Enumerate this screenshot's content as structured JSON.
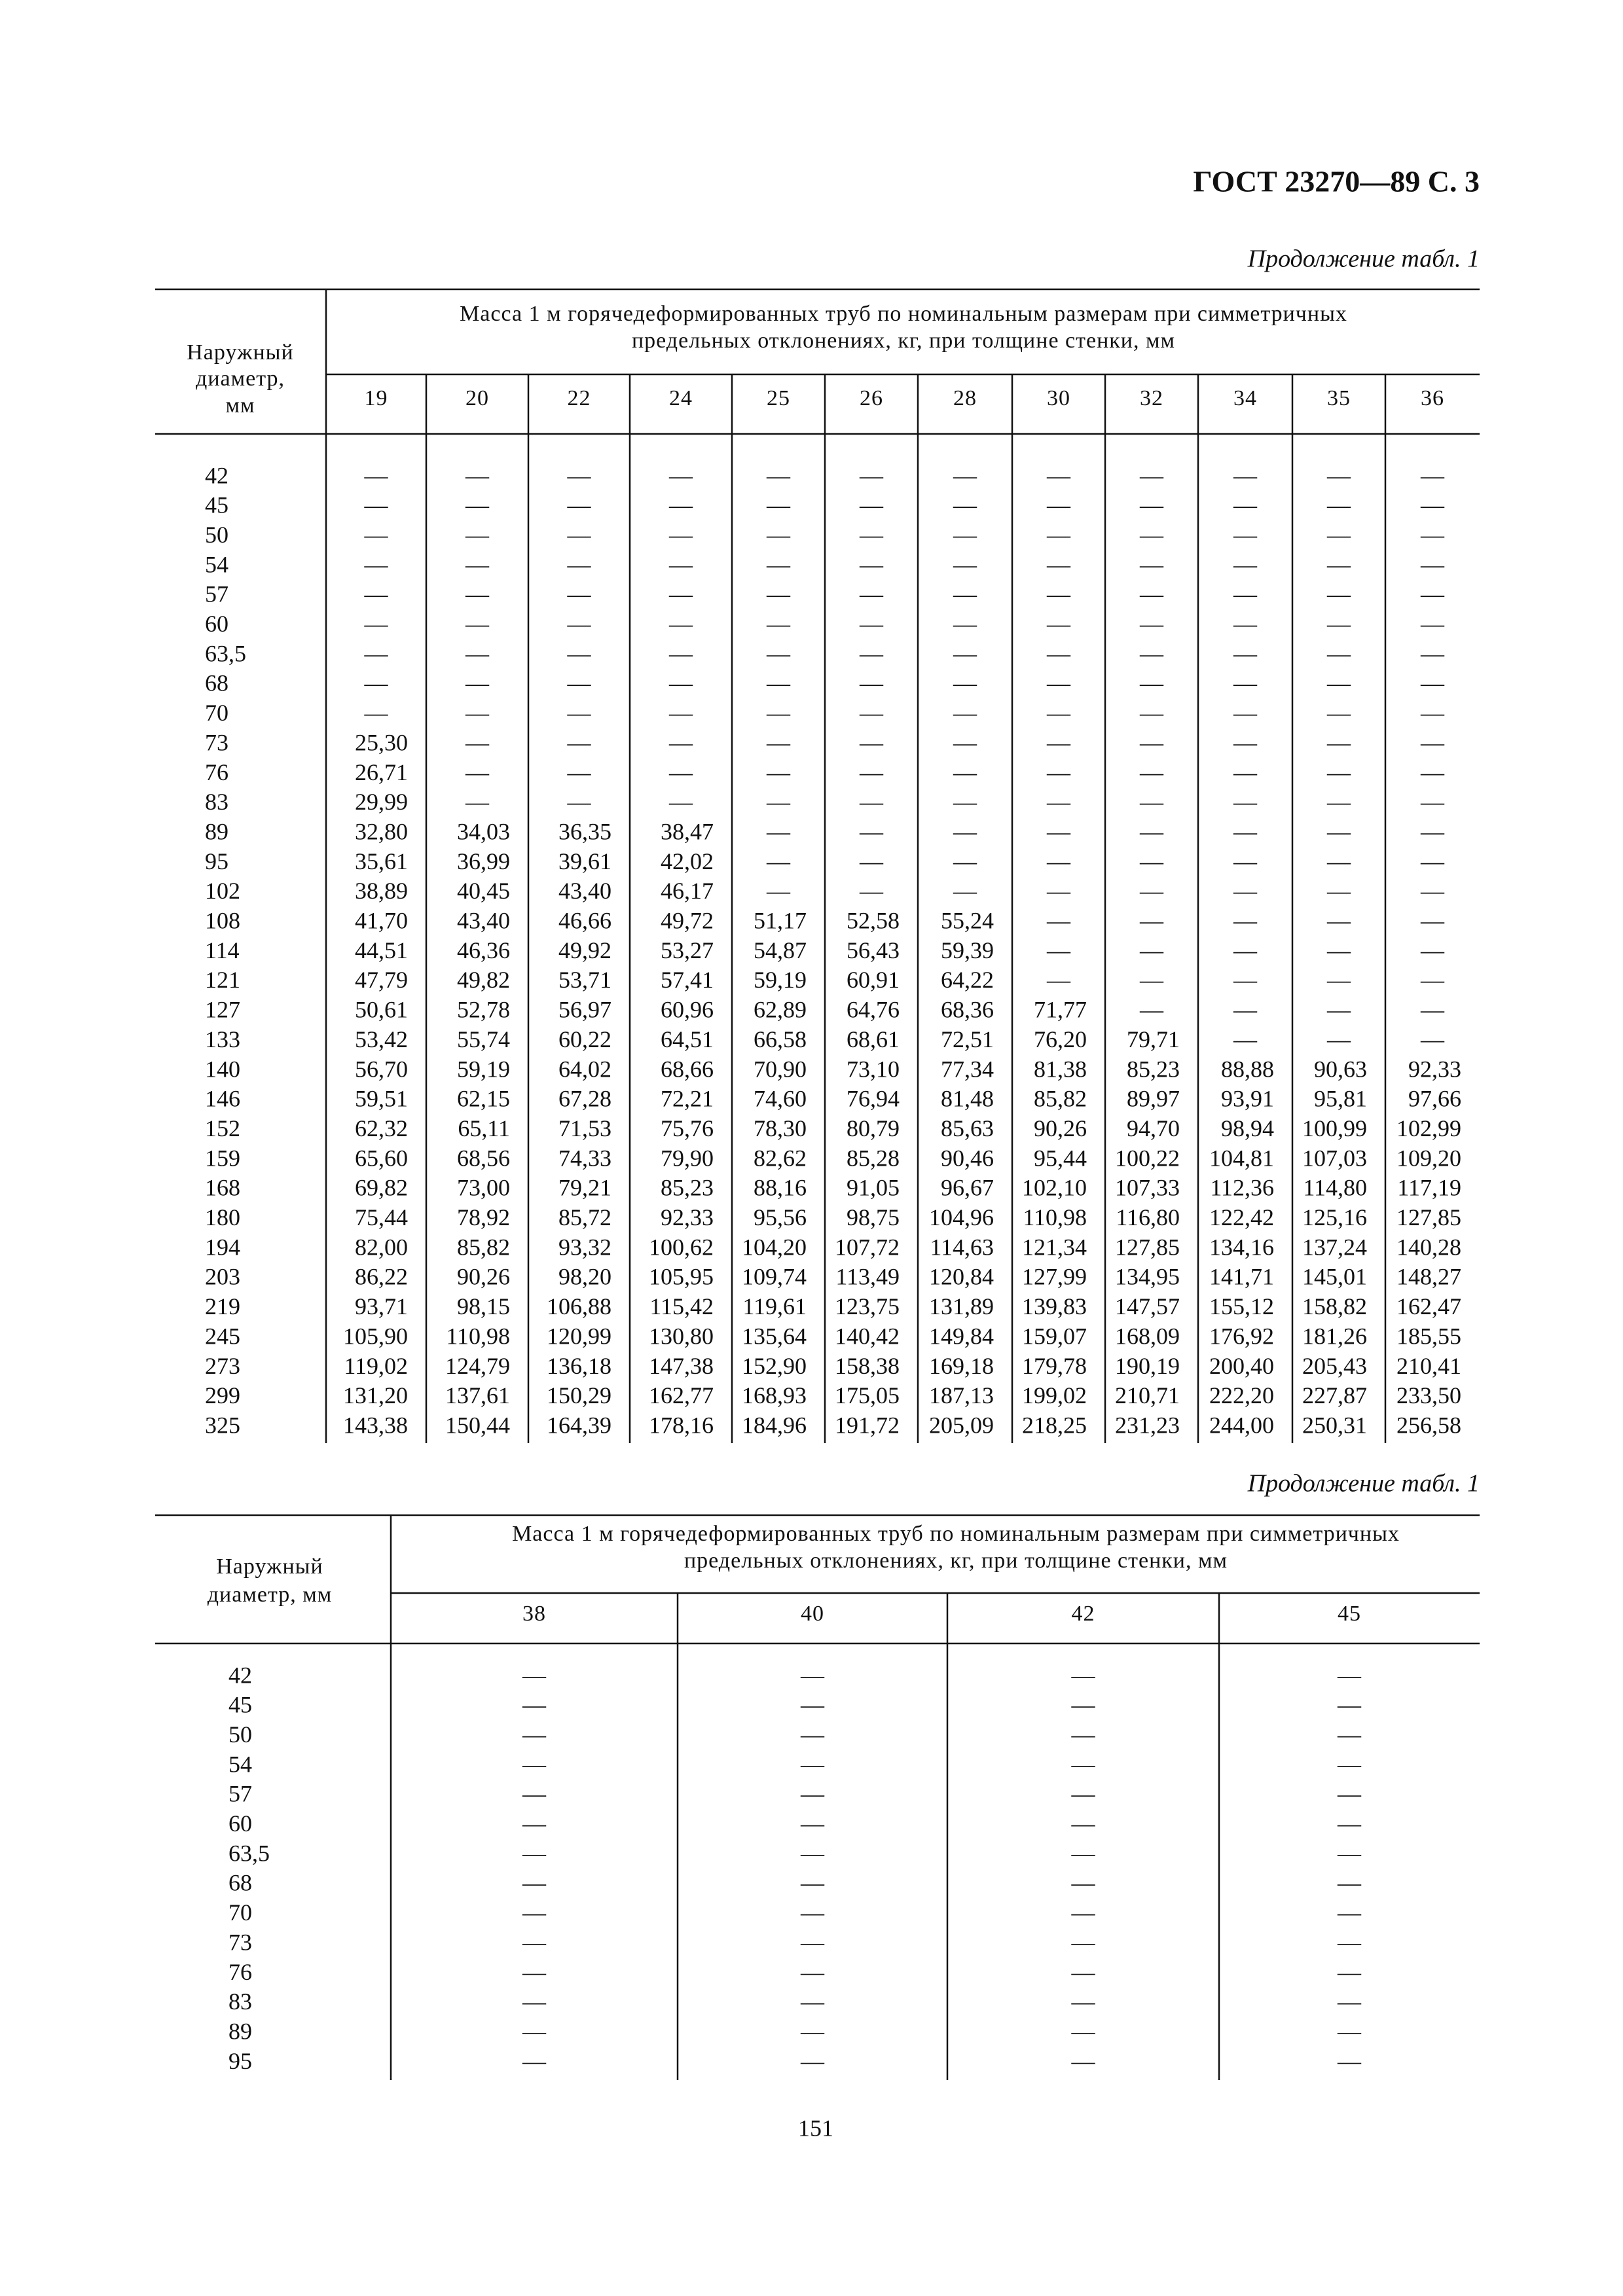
{
  "header": {
    "title": "ГОСТ 23270—89 С. 3"
  },
  "tables": [
    {
      "caption": "Продолжение табл. 1",
      "row_header": [
        "Наружный",
        "диаметр,",
        "мм"
      ],
      "group_header": [
        "Масса 1 м горячедеформированных труб  по номинальным размерам при симметричных",
        "предельных отклонениях, кг, при толщине стенки, мм"
      ],
      "columns": [
        "19",
        "20",
        "22",
        "24",
        "25",
        "26",
        "28",
        "30",
        "32",
        "34",
        "35",
        "36"
      ],
      "rows": [
        {
          "diameter": "42",
          "values": [
            "—",
            "—",
            "—",
            "—",
            "—",
            "—",
            "—",
            "—",
            "—",
            "—",
            "—",
            "—"
          ]
        },
        {
          "diameter": "45",
          "values": [
            "—",
            "—",
            "—",
            "—",
            "—",
            "—",
            "—",
            "—",
            "—",
            "—",
            "—",
            "—"
          ]
        },
        {
          "diameter": "50",
          "values": [
            "—",
            "—",
            "—",
            "—",
            "—",
            "—",
            "—",
            "—",
            "—",
            "—",
            "—",
            "—"
          ]
        },
        {
          "diameter": "54",
          "values": [
            "—",
            "—",
            "—",
            "—",
            "—",
            "—",
            "—",
            "—",
            "—",
            "—",
            "—",
            "—"
          ]
        },
        {
          "diameter": "57",
          "values": [
            "—",
            "—",
            "—",
            "—",
            "—",
            "—",
            "—",
            "—",
            "—",
            "—",
            "—",
            "—"
          ]
        },
        {
          "diameter": "60",
          "values": [
            "—",
            "—",
            "—",
            "—",
            "—",
            "—",
            "—",
            "—",
            "—",
            "—",
            "—",
            "—"
          ]
        },
        {
          "diameter": "63,5",
          "values": [
            "—",
            "—",
            "—",
            "—",
            "—",
            "—",
            "—",
            "—",
            "—",
            "—",
            "—",
            "—"
          ]
        },
        {
          "diameter": "68",
          "values": [
            "—",
            "—",
            "—",
            "—",
            "—",
            "—",
            "—",
            "—",
            "—",
            "—",
            "—",
            "—"
          ]
        },
        {
          "diameter": "70",
          "values": [
            "—",
            "—",
            "—",
            "—",
            "—",
            "—",
            "—",
            "—",
            "—",
            "—",
            "—",
            "—"
          ]
        },
        {
          "diameter": "73",
          "values": [
            "25,30",
            "—",
            "—",
            "—",
            "—",
            "—",
            "—",
            "—",
            "—",
            "—",
            "—",
            "—"
          ]
        },
        {
          "diameter": "76",
          "values": [
            "26,71",
            "—",
            "—",
            "—",
            "—",
            "—",
            "—",
            "—",
            "—",
            "—",
            "—",
            "—"
          ]
        },
        {
          "diameter": "83",
          "values": [
            "29,99",
            "—",
            "—",
            "—",
            "—",
            "—",
            "—",
            "—",
            "—",
            "—",
            "—",
            "—"
          ]
        },
        {
          "diameter": "89",
          "values": [
            "32,80",
            "34,03",
            "36,35",
            "38,47",
            "—",
            "—",
            "—",
            "—",
            "—",
            "—",
            "—",
            "—"
          ]
        },
        {
          "diameter": "95",
          "values": [
            "35,61",
            "36,99",
            "39,61",
            "42,02",
            "—",
            "—",
            "—",
            "—",
            "—",
            "—",
            "—",
            "—"
          ]
        },
        {
          "diameter": "102",
          "values": [
            "38,89",
            "40,45",
            "43,40",
            "46,17",
            "—",
            "—",
            "—",
            "—",
            "—",
            "—",
            "—",
            "—"
          ]
        },
        {
          "diameter": "108",
          "values": [
            "41,70",
            "43,40",
            "46,66",
            "49,72",
            "51,17",
            "52,58",
            "55,24",
            "—",
            "—",
            "—",
            "—",
            "—"
          ]
        },
        {
          "diameter": "114",
          "values": [
            "44,51",
            "46,36",
            "49,92",
            "53,27",
            "54,87",
            "56,43",
            "59,39",
            "—",
            "—",
            "—",
            "—",
            "—"
          ]
        },
        {
          "diameter": "121",
          "values": [
            "47,79",
            "49,82",
            "53,71",
            "57,41",
            "59,19",
            "60,91",
            "64,22",
            "—",
            "—",
            "—",
            "—",
            "—"
          ]
        },
        {
          "diameter": "127",
          "values": [
            "50,61",
            "52,78",
            "56,97",
            "60,96",
            "62,89",
            "64,76",
            "68,36",
            "71,77",
            "—",
            "—",
            "—",
            "—"
          ]
        },
        {
          "diameter": "133",
          "values": [
            "53,42",
            "55,74",
            "60,22",
            "64,51",
            "66,58",
            "68,61",
            "72,51",
            "76,20",
            "79,71",
            "—",
            "—",
            "—"
          ]
        },
        {
          "diameter": "140",
          "values": [
            "56,70",
            "59,19",
            "64,02",
            "68,66",
            "70,90",
            "73,10",
            "77,34",
            "81,38",
            "85,23",
            "88,88",
            "90,63",
            "92,33"
          ]
        },
        {
          "diameter": "146",
          "values": [
            "59,51",
            "62,15",
            "67,28",
            "72,21",
            "74,60",
            "76,94",
            "81,48",
            "85,82",
            "89,97",
            "93,91",
            "95,81",
            "97,66"
          ]
        },
        {
          "diameter": "152",
          "values": [
            "62,32",
            "65,11",
            "71,53",
            "75,76",
            "78,30",
            "80,79",
            "85,63",
            "90,26",
            "94,70",
            "98,94",
            "100,99",
            "102,99"
          ]
        },
        {
          "diameter": "159",
          "values": [
            "65,60",
            "68,56",
            "74,33",
            "79,90",
            "82,62",
            "85,28",
            "90,46",
            "95,44",
            "100,22",
            "104,81",
            "107,03",
            "109,20"
          ]
        },
        {
          "diameter": "168",
          "values": [
            "69,82",
            "73,00",
            "79,21",
            "85,23",
            "88,16",
            "91,05",
            "96,67",
            "102,10",
            "107,33",
            "112,36",
            "114,80",
            "117,19"
          ]
        },
        {
          "diameter": "180",
          "values": [
            "75,44",
            "78,92",
            "85,72",
            "92,33",
            "95,56",
            "98,75",
            "104,96",
            "110,98",
            "116,80",
            "122,42",
            "125,16",
            "127,85"
          ]
        },
        {
          "diameter": "194",
          "values": [
            "82,00",
            "85,82",
            "93,32",
            "100,62",
            "104,20",
            "107,72",
            "114,63",
            "121,34",
            "127,85",
            "134,16",
            "137,24",
            "140,28"
          ]
        },
        {
          "diameter": "203",
          "values": [
            "86,22",
            "90,26",
            "98,20",
            "105,95",
            "109,74",
            "113,49",
            "120,84",
            "127,99",
            "134,95",
            "141,71",
            "145,01",
            "148,27"
          ]
        },
        {
          "diameter": "219",
          "values": [
            "93,71",
            "98,15",
            "106,88",
            "115,42",
            "119,61",
            "123,75",
            "131,89",
            "139,83",
            "147,57",
            "155,12",
            "158,82",
            "162,47"
          ]
        },
        {
          "diameter": "245",
          "values": [
            "105,90",
            "110,98",
            "120,99",
            "130,80",
            "135,64",
            "140,42",
            "149,84",
            "159,07",
            "168,09",
            "176,92",
            "181,26",
            "185,55"
          ]
        },
        {
          "diameter": "273",
          "values": [
            "119,02",
            "124,79",
            "136,18",
            "147,38",
            "152,90",
            "158,38",
            "169,18",
            "179,78",
            "190,19",
            "200,40",
            "205,43",
            "210,41"
          ]
        },
        {
          "diameter": "299",
          "values": [
            "131,20",
            "137,61",
            "150,29",
            "162,77",
            "168,93",
            "175,05",
            "187,13",
            "199,02",
            "210,71",
            "222,20",
            "227,87",
            "233,50"
          ]
        },
        {
          "diameter": "325",
          "values": [
            "143,38",
            "150,44",
            "164,39",
            "178,16",
            "184,96",
            "191,72",
            "205,09",
            "218,25",
            "231,23",
            "244,00",
            "250,31",
            "256,58"
          ]
        }
      ]
    },
    {
      "caption": "Продолжение табл. 1",
      "row_header": [
        "Наружный",
        "диаметр,  мм"
      ],
      "group_header": [
        "Масса 1 м горячедеформированных труб  по номинальным размерам при симметричных",
        "предельных отклонениях, кг, при толщине стенки, мм"
      ],
      "columns": [
        "38",
        "40",
        "42",
        "45"
      ],
      "rows": [
        {
          "diameter": "42",
          "values": [
            "—",
            "—",
            "—",
            "—"
          ]
        },
        {
          "diameter": "45",
          "values": [
            "—",
            "—",
            "—",
            "—"
          ]
        },
        {
          "diameter": "50",
          "values": [
            "—",
            "—",
            "—",
            "—"
          ]
        },
        {
          "diameter": "54",
          "values": [
            "—",
            "—",
            "—",
            "—"
          ]
        },
        {
          "diameter": "57",
          "values": [
            "—",
            "—",
            "—",
            "—"
          ]
        },
        {
          "diameter": "60",
          "values": [
            "—",
            "—",
            "—",
            "—"
          ]
        },
        {
          "diameter": "63,5",
          "values": [
            "—",
            "—",
            "—",
            "—"
          ]
        },
        {
          "diameter": "68",
          "values": [
            "—",
            "—",
            "—",
            "—"
          ]
        },
        {
          "diameter": "70",
          "values": [
            "—",
            "—",
            "—",
            "—"
          ]
        },
        {
          "diameter": "73",
          "values": [
            "—",
            "—",
            "—",
            "—"
          ]
        },
        {
          "diameter": "76",
          "values": [
            "—",
            "—",
            "—",
            "—"
          ]
        },
        {
          "diameter": "83",
          "values": [
            "—",
            "—",
            "—",
            "—"
          ]
        },
        {
          "diameter": "89",
          "values": [
            "—",
            "—",
            "—",
            "—"
          ]
        },
        {
          "diameter": "95",
          "values": [
            "—",
            "—",
            "—",
            "—"
          ]
        }
      ]
    }
  ],
  "footer": {
    "page_number": "151"
  }
}
